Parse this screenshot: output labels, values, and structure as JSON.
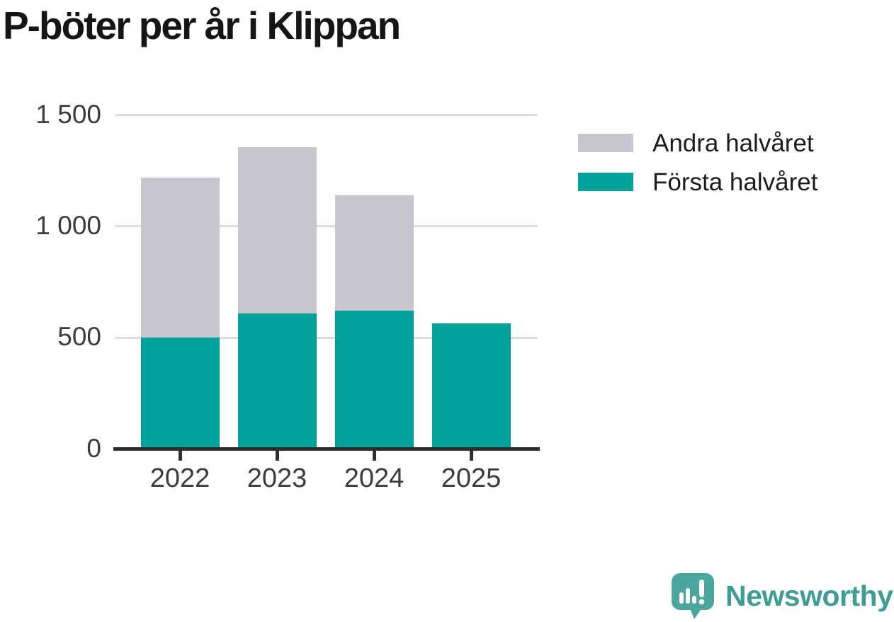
{
  "chart_data": {
    "type": "bar",
    "stacked": true,
    "title": "P-böter per år i Klippan",
    "categories": [
      "2022",
      "2023",
      "2024",
      "2025"
    ],
    "series": [
      {
        "name": "Första halvåret",
        "color": "#00a299",
        "values": [
          500,
          610,
          620,
          565
        ]
      },
      {
        "name": "Andra halvåret",
        "color": "#c8c6ce",
        "values": [
          720,
          745,
          520,
          0
        ]
      }
    ],
    "totals": [
      1220,
      1355,
      1140,
      565
    ],
    "xlabel": "",
    "ylabel": "",
    "ylim": [
      0,
      1500
    ],
    "yticks": [
      0,
      500,
      1000,
      1500
    ],
    "ytick_labels": [
      "0",
      "500",
      "1 000",
      "1 500"
    ],
    "grid": true,
    "legend_position": "right"
  },
  "legend": {
    "items": [
      {
        "label": "Andra halvåret",
        "color": "#c8c6ce"
      },
      {
        "label": "Första halvåret",
        "color": "#00a299"
      }
    ]
  },
  "branding": {
    "name": "Newsworthy",
    "icon": "newsworthy-logo-icon",
    "icon_color": "#4ba69e",
    "text_color": "#3f9d96"
  },
  "colors": {
    "background": "#ffffff",
    "gridline": "#dcdcdc",
    "axis": "#2e2e2e",
    "tick_text": "#3c3c3c",
    "title_text": "#151515",
    "legend_text": "#1c1c1c"
  }
}
